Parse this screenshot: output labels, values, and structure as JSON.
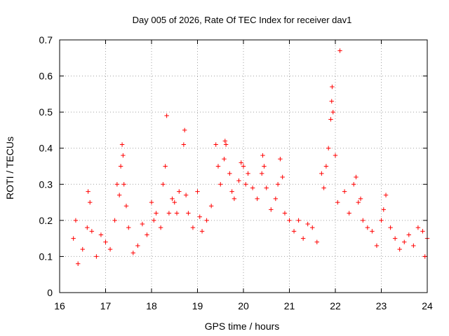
{
  "chart_data": {
    "type": "scatter",
    "title": "Day 005 of 2026, Rate Of TEC Index for receiver dav1",
    "xlabel": "GPS time / hours",
    "ylabel": "ROTI / TECUs",
    "xlim": [
      16,
      24
    ],
    "ylim": [
      0,
      0.7
    ],
    "x_ticks": [
      "16",
      "17",
      "18",
      "19",
      "20",
      "21",
      "22",
      "23",
      "24"
    ],
    "y_ticks": [
      "0",
      "0.1",
      "0.2",
      "0.3",
      "0.4",
      "0.5",
      "0.6",
      "0.7"
    ],
    "grid": true,
    "marker": "+",
    "color": "#ff0000",
    "series": [
      {
        "x": [
          16.3,
          16.35,
          16.4,
          16.5,
          16.6,
          16.62,
          16.66,
          16.7,
          16.8,
          16.9,
          17.0,
          17.1,
          17.2,
          17.25,
          17.3,
          17.33,
          17.36,
          17.38,
          17.4,
          17.45,
          17.5,
          17.6,
          17.7,
          17.8,
          17.9,
          18.0,
          18.05,
          18.1,
          18.2,
          18.25,
          18.3,
          18.33,
          18.38,
          18.45,
          18.5,
          18.55,
          18.6,
          18.7,
          18.72,
          18.75,
          18.8,
          18.9,
          19.0,
          19.05,
          19.1,
          19.2,
          19.3,
          19.4,
          19.45,
          19.5,
          19.58,
          19.6,
          19.62,
          19.7,
          19.75,
          19.8,
          19.9,
          19.95,
          20.0,
          20.05,
          20.1,
          20.2,
          20.3,
          20.4,
          20.42,
          20.45,
          20.5,
          20.6,
          20.7,
          20.75,
          20.8,
          20.85,
          20.9,
          21.0,
          21.1,
          21.2,
          21.3,
          21.4,
          21.5,
          21.6,
          21.7,
          21.75,
          21.8,
          21.85,
          21.9,
          21.92,
          21.93,
          21.95,
          22.0,
          22.05,
          22.1,
          22.2,
          22.3,
          22.4,
          22.45,
          22.5,
          22.55,
          22.6,
          22.7,
          22.8,
          22.9,
          23.0,
          23.05,
          23.1,
          23.2,
          23.3,
          23.4,
          23.5,
          23.6,
          23.7,
          23.8,
          23.9,
          23.95,
          24.0
        ],
        "y": [
          0.15,
          0.2,
          0.08,
          0.12,
          0.18,
          0.28,
          0.25,
          0.17,
          0.1,
          0.16,
          0.14,
          0.12,
          0.2,
          0.3,
          0.27,
          0.35,
          0.41,
          0.38,
          0.3,
          0.24,
          0.18,
          0.11,
          0.13,
          0.19,
          0.16,
          0.25,
          0.2,
          0.22,
          0.18,
          0.3,
          0.35,
          0.49,
          0.22,
          0.26,
          0.25,
          0.22,
          0.28,
          0.41,
          0.45,
          0.27,
          0.22,
          0.18,
          0.28,
          0.21,
          0.17,
          0.2,
          0.24,
          0.41,
          0.35,
          0.3,
          0.37,
          0.42,
          0.41,
          0.33,
          0.28,
          0.26,
          0.31,
          0.36,
          0.35,
          0.3,
          0.33,
          0.29,
          0.26,
          0.33,
          0.38,
          0.35,
          0.29,
          0.23,
          0.26,
          0.3,
          0.37,
          0.32,
          0.22,
          0.2,
          0.17,
          0.2,
          0.15,
          0.19,
          0.18,
          0.14,
          0.33,
          0.29,
          0.35,
          0.4,
          0.48,
          0.53,
          0.57,
          0.5,
          0.38,
          0.25,
          0.67,
          0.28,
          0.22,
          0.3,
          0.32,
          0.25,
          0.26,
          0.2,
          0.18,
          0.17,
          0.13,
          0.2,
          0.23,
          0.27,
          0.18,
          0.15,
          0.12,
          0.14,
          0.16,
          0.13,
          0.18,
          0.17,
          0.1,
          0.15
        ]
      }
    ]
  }
}
